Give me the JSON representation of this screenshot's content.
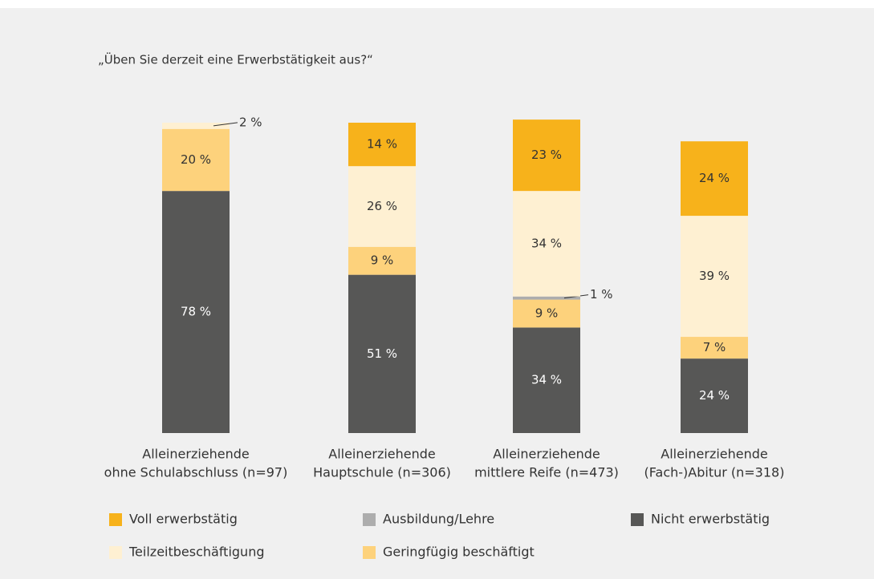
{
  "chart_data": {
    "type": "stacked_bar",
    "title": "„Üben Sie derzeit eine Erwerbstätigkeit aus?“",
    "categories": [
      [
        "Alleinerziehende",
        "ohne Schulabschluss (n=97)"
      ],
      [
        "Alleinerziehende",
        "Hauptschule (n=306)"
      ],
      [
        "Alleinerziehende",
        "mittlere Reife (n=473)"
      ],
      [
        "Alleinerziehende",
        "(Fach-)Abitur (n=318)"
      ]
    ],
    "ylim": [
      0,
      100
    ],
    "series": [
      {
        "name": "Nicht erwerbstätig",
        "color": "#575756",
        "values": [
          78,
          51,
          34,
          24
        ],
        "value_labels": [
          "78 %",
          "51 %",
          "34 %",
          "24 %"
        ]
      },
      {
        "name": "Geringfügig beschäftigt",
        "color": "#fdd27c",
        "values": [
          20,
          9,
          9,
          7
        ],
        "value_labels": [
          "20 %",
          "9 %",
          "9 %",
          "7 %"
        ]
      },
      {
        "name": "Ausbildung/Lehre",
        "color": "#adadad",
        "values": [
          null,
          null,
          1,
          null
        ],
        "value_labels": [
          null,
          null,
          "1 %",
          null
        ]
      },
      {
        "name": "Teilzeitbeschäftigung",
        "color": "#fef0d2",
        "values": [
          2,
          26,
          34,
          39
        ],
        "value_labels": [
          "2 %",
          "26 %",
          "34 %",
          "39 %"
        ]
      },
      {
        "name": "Voll erwerbstätig",
        "color": "#f7b21b",
        "values": [
          null,
          14,
          23,
          24
        ],
        "value_labels": [
          null,
          "14 %",
          "23 %",
          "24 %"
        ]
      }
    ]
  }
}
